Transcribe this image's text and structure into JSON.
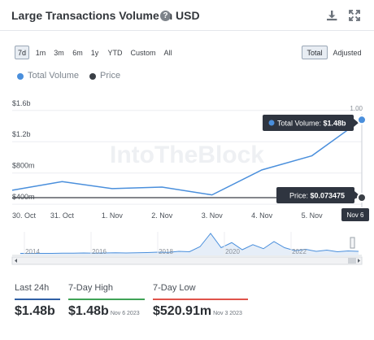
{
  "header": {
    "title": "Large Transactions Volume in USD",
    "help": "?"
  },
  "colors": {
    "volume": "#4a8fdc",
    "price": "#3a3f46",
    "high": "#3fa356",
    "low": "#e0534a",
    "last": "#2f5fa5"
  },
  "ranges": [
    {
      "label": "7d",
      "active": true
    },
    {
      "label": "1m",
      "active": false
    },
    {
      "label": "3m",
      "active": false
    },
    {
      "label": "6m",
      "active": false
    },
    {
      "label": "1y",
      "active": false
    },
    {
      "label": "YTD",
      "active": false
    },
    {
      "label": "Custom",
      "active": false
    },
    {
      "label": "All",
      "active": false
    }
  ],
  "modes": [
    {
      "label": "Total",
      "active": true
    },
    {
      "label": "Adjusted",
      "active": false
    }
  ],
  "legend": {
    "volume": "Total Volume",
    "price": "Price"
  },
  "watermark": "IntoTheBlock",
  "chart_data": {
    "type": "line",
    "title": "Large Transactions Volume in USD",
    "categories": [
      "30. Oct",
      "31. Oct",
      "1. Nov",
      "2. Nov",
      "3. Nov",
      "4. Nov",
      "5. Nov",
      "Nov 6"
    ],
    "series": [
      {
        "name": "Total Volume",
        "axis": "left",
        "color": "#4a8fdc",
        "values": [
          0.58,
          0.69,
          0.6,
          0.62,
          0.52,
          0.84,
          1.02,
          1.48
        ]
      },
      {
        "name": "Price",
        "axis": "right",
        "color": "#3a3f46",
        "values": [
          0.0735,
          0.0735,
          0.0735,
          0.0735,
          0.0735,
          0.0735,
          0.0735,
          0.073475
        ]
      }
    ],
    "y_left": {
      "ticks": [
        "$1.6b",
        "$1.2b",
        "$800m",
        "$400m"
      ],
      "tick_values": [
        1.6,
        1.2,
        0.8,
        0.4
      ],
      "ylim": [
        0.36,
        1.66
      ]
    },
    "y_right": {
      "ticks": [
        "1.00"
      ],
      "tick_values": [
        1.0
      ]
    },
    "tooltip_volume": {
      "label": "Total Volume:",
      "value": "$1.48b"
    },
    "tooltip_price": {
      "label": "Price:",
      "value": "$0.073475"
    },
    "hover_x": "Nov 6",
    "grid": true,
    "navigator": {
      "x_labels": [
        "2014",
        "2016",
        "2018",
        "2020",
        "2022"
      ],
      "series": [
        0.02,
        0.02,
        0.02,
        0.02,
        0.03,
        0.03,
        0.04,
        0.03,
        0.04,
        0.05,
        0.04,
        0.05,
        0.06,
        0.08,
        0.07,
        0.12,
        0.1,
        0.35,
        1.0,
        0.3,
        0.55,
        0.2,
        0.45,
        0.25,
        0.6,
        0.3,
        0.15,
        0.22,
        0.12,
        0.18,
        0.1,
        0.14,
        0.12
      ]
    }
  },
  "stats": [
    {
      "label": "Last 24h",
      "value": "$1.48b",
      "date": "",
      "color": "#2f5fa5"
    },
    {
      "label": "7-Day High",
      "value": "$1.48b",
      "date": "Nov 6 2023",
      "color": "#3fa356"
    },
    {
      "label": "7-Day Low",
      "value": "$520.91m",
      "date": "Nov 3 2023",
      "color": "#e0534a"
    }
  ]
}
